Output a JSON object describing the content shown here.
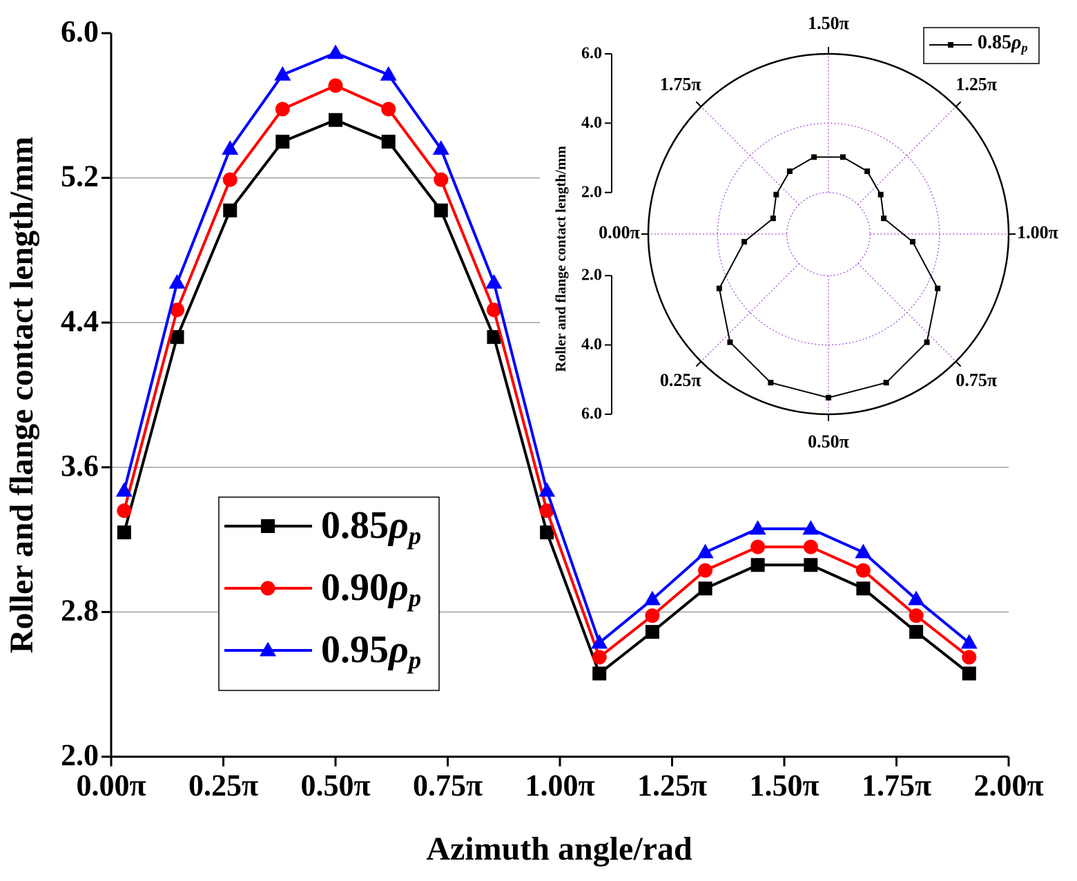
{
  "chart_data": [
    {
      "type": "line",
      "xlabel": "Azimuth angle/rad",
      "ylabel": "Roller and flange contact length/mm",
      "x": [
        0.029,
        0.147,
        0.265,
        0.382,
        0.5,
        0.618,
        0.735,
        0.853,
        0.971,
        1.088,
        1.206,
        1.324,
        1.441,
        1.559,
        1.676,
        1.794,
        1.912
      ],
      "series": [
        {
          "name": "0.85ρp",
          "color": "#000000",
          "marker": "square",
          "values": [
            3.24,
            4.32,
            5.02,
            5.4,
            5.52,
            5.4,
            5.02,
            4.32,
            3.24,
            2.46,
            2.69,
            2.93,
            3.06,
            3.06,
            2.93,
            2.69,
            2.46
          ]
        },
        {
          "name": "0.90ρp",
          "color": "#ff0000",
          "marker": "circle",
          "values": [
            3.36,
            4.47,
            5.19,
            5.58,
            5.71,
            5.58,
            5.19,
            4.47,
            3.36,
            2.55,
            2.78,
            3.03,
            3.16,
            3.16,
            3.03,
            2.78,
            2.55
          ]
        },
        {
          "name": "0.95ρp",
          "color": "#0000ff",
          "marker": "triangle",
          "values": [
            3.47,
            4.62,
            5.36,
            5.77,
            5.89,
            5.77,
            5.36,
            4.62,
            3.47,
            2.63,
            2.87,
            3.13,
            3.26,
            3.26,
            3.13,
            2.87,
            2.63
          ]
        }
      ],
      "xlim": [
        0,
        2
      ],
      "ylim": [
        2,
        6
      ],
      "xticks": [
        {
          "value": 0,
          "label": "0.00π"
        },
        {
          "value": 0.25,
          "label": "0.25π"
        },
        {
          "value": 0.5,
          "label": "0.50π"
        },
        {
          "value": 0.75,
          "label": "0.75π"
        },
        {
          "value": 1,
          "label": "1.00π"
        },
        {
          "value": 1.25,
          "label": "1.25π"
        },
        {
          "value": 1.5,
          "label": "1.50π"
        },
        {
          "value": 1.75,
          "label": "1.75π"
        },
        {
          "value": 2,
          "label": "2.00π"
        }
      ],
      "yticks": [
        {
          "value": 2,
          "label": "2.0"
        },
        2.8,
        3.6,
        4.4,
        5.2,
        {
          "value": 6,
          "label": "6.0"
        }
      ],
      "grid": true
    },
    {
      "type": "polar",
      "ylabel": "Roller and flange contact length/mm",
      "theta": [
        0.029,
        0.147,
        0.265,
        0.382,
        0.5,
        0.618,
        0.735,
        0.853,
        0.971,
        1.088,
        1.206,
        1.324,
        1.441,
        1.559,
        1.676,
        1.794,
        1.912
      ],
      "series": [
        {
          "name": "0.85ρp",
          "color": "#000000",
          "marker": "square",
          "values": [
            3.24,
            4.32,
            5.02,
            5.4,
            5.52,
            5.4,
            5.02,
            4.32,
            3.24,
            2.46,
            2.69,
            2.93,
            3.06,
            3.06,
            2.93,
            2.69,
            2.46
          ]
        }
      ],
      "rlim": [
        0.8,
        6
      ],
      "rticks": [
        {
          "value": 2,
          "label": "2.0"
        },
        {
          "value": 4,
          "label": "4.0"
        },
        {
          "value": 6,
          "label": "6.0"
        }
      ],
      "thetaticks": [
        {
          "value": 0,
          "label": "0.00π"
        },
        {
          "value": 0.25,
          "label": "0.25π"
        },
        {
          "value": 0.5,
          "label": "0.50π"
        },
        {
          "value": 0.75,
          "label": "0.75π"
        },
        {
          "value": 1,
          "label": "1.00π"
        },
        {
          "value": 1.25,
          "label": "1.25π"
        },
        {
          "value": 1.5,
          "label": "1.50π"
        },
        {
          "value": 1.75,
          "label": "1.75π"
        }
      ],
      "grid": true
    }
  ]
}
